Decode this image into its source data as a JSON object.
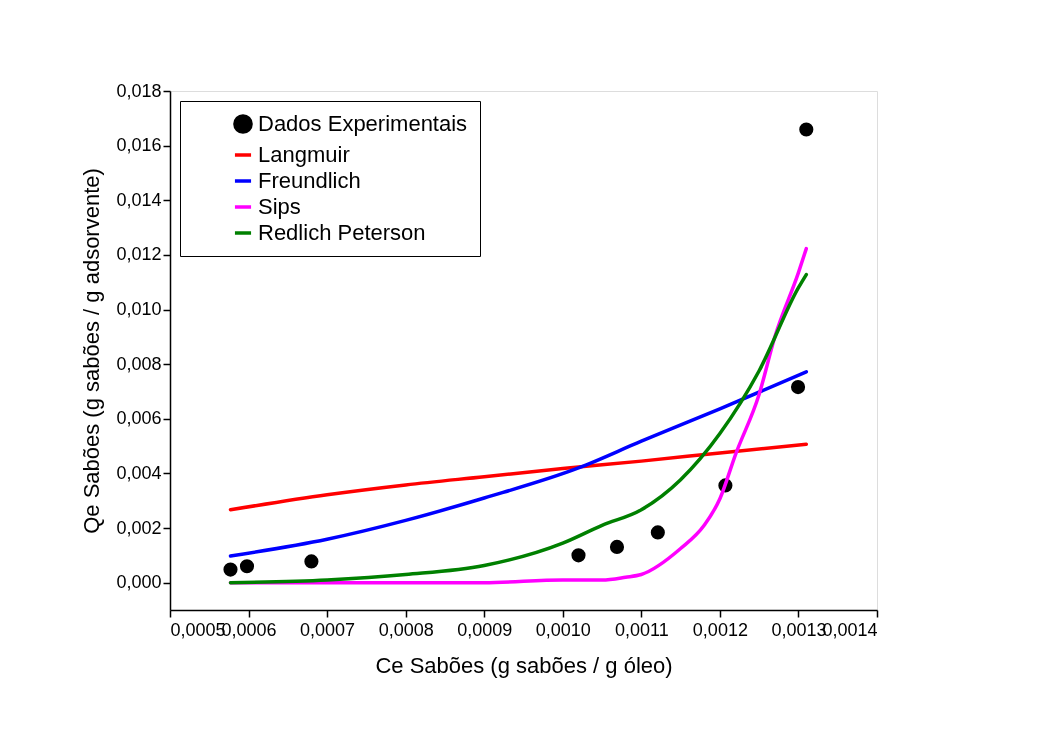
{
  "chart_data": {
    "type": "scatter",
    "xlabel": "Ce Sabões (g sabões / g óleo)",
    "ylabel": "Qe Sabões (g sabões / g adsorvente)",
    "xlim": [
      0.0005,
      0.0014
    ],
    "ylim": [
      -0.001,
      0.018
    ],
    "xticks": [
      {
        "value": 0.0005,
        "label": "0,0005"
      },
      {
        "value": 0.0006,
        "label": "0,0006"
      },
      {
        "value": 0.0007,
        "label": "0,0007"
      },
      {
        "value": 0.0008,
        "label": "0,0008"
      },
      {
        "value": 0.0009,
        "label": "0,0009"
      },
      {
        "value": 0.001,
        "label": "0,0010"
      },
      {
        "value": 0.0011,
        "label": "0,0011"
      },
      {
        "value": 0.0012,
        "label": "0,0012"
      },
      {
        "value": 0.0013,
        "label": "0,0013"
      },
      {
        "value": 0.0014,
        "label": "0,0014"
      }
    ],
    "yticks": [
      {
        "value": 0,
        "label": "0,000"
      },
      {
        "value": 0.002,
        "label": "0,002"
      },
      {
        "value": 0.004,
        "label": "0,004"
      },
      {
        "value": 0.006,
        "label": "0,006"
      },
      {
        "value": 0.008,
        "label": "0,008"
      },
      {
        "value": 0.01,
        "label": "0,010"
      },
      {
        "value": 0.012,
        "label": "0,012"
      },
      {
        "value": 0.014,
        "label": "0,014"
      },
      {
        "value": 0.016,
        "label": "0,016"
      },
      {
        "value": 0.018,
        "label": "0,018"
      }
    ],
    "grid": false,
    "legend": "top left",
    "series": [
      {
        "name": "Dados Experimentais",
        "marker": "circle",
        "color": "#000000",
        "x": [
          0.000577,
          0.000598,
          0.00068,
          0.00102,
          0.001069,
          0.001121,
          0.001207,
          0.0012995,
          0.00131
        ],
        "values": [
          0.00048,
          0.0006,
          0.00078,
          0.001,
          0.00131,
          0.00184,
          0.00356,
          0.00716,
          0.01659
        ]
      },
      {
        "name": "Langmuir",
        "type": "line",
        "color": "#ff0000",
        "x": [
          0.000577,
          0.0007,
          0.0008,
          0.0009,
          0.001,
          0.0011,
          0.0012,
          0.00131
        ],
        "values": [
          0.00267,
          0.00322,
          0.00358,
          0.00388,
          0.00418,
          0.00445,
          0.00475,
          0.00507
        ]
      },
      {
        "name": "Freundlich",
        "type": "line",
        "color": "#0000ff",
        "x": [
          0.000577,
          0.0007,
          0.0008,
          0.0009,
          0.00102,
          0.0011,
          0.0012,
          0.00131
        ],
        "values": [
          0.00098,
          0.00159,
          0.00228,
          0.0031,
          0.0042,
          0.00518,
          0.00636,
          0.00772
        ]
      },
      {
        "name": "Sips",
        "type": "line",
        "color": "#ff00ff",
        "x": [
          0.000577,
          0.0008,
          0.0009,
          0.001,
          0.00105,
          0.00108,
          0.0011,
          0.00115,
          0.00118,
          0.0012,
          0.00122,
          0.00125,
          0.00127,
          0.0013,
          0.00131
        ],
        "values": [
          0,
          0,
          0,
          0.0001,
          0.0001,
          0.0002,
          0.0003,
          0.00125,
          0.0021,
          0.00307,
          0.0047,
          0.0069,
          0.009,
          0.01135,
          0.01223
        ]
      },
      {
        "name": "Redlich Peterson",
        "type": "line",
        "color": "#008000",
        "x": [
          0.000577,
          0.0007,
          0.0008,
          0.0009,
          0.001,
          0.00105,
          0.0011,
          0.00115,
          0.0012,
          0.00125,
          0.0013,
          0.00131
        ],
        "values": [
          0,
          0.0001,
          0.0003,
          0.00063,
          0.00145,
          0.0021,
          0.00267,
          0.00377,
          0.00546,
          0.00776,
          0.0108,
          0.01128
        ]
      }
    ]
  }
}
